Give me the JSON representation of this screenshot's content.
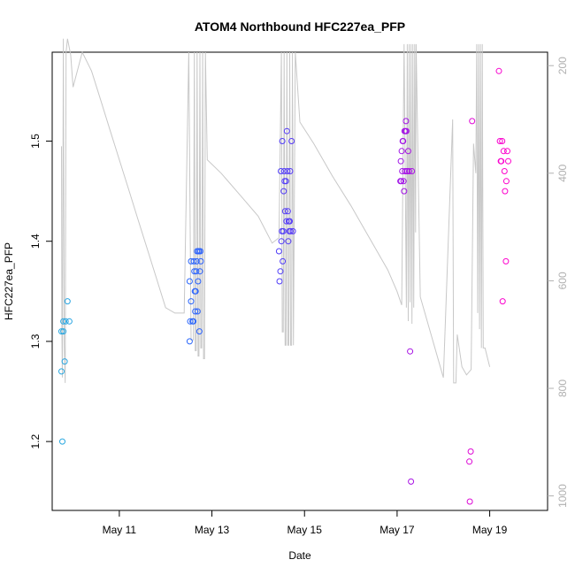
{
  "chart_data": {
    "type": "scatter",
    "title": "ATOM4 Northbound HFC227ea_PFP",
    "xlabel": "Date",
    "ylabel": "HFC227ea_PFP",
    "x_unit": "days since May 9 00:00",
    "xlim": [
      0.55,
      11.25
    ],
    "ylim": [
      1.1312,
      1.5888
    ],
    "x_ticks": [
      {
        "value": 2,
        "label": "May 11"
      },
      {
        "value": 4,
        "label": "May 13"
      },
      {
        "value": 6,
        "label": "May 15"
      },
      {
        "value": 8,
        "label": "May 17"
      },
      {
        "value": 10,
        "label": "May 19"
      }
    ],
    "y_ticks": [
      1.2,
      1.3,
      1.4,
      1.5
    ],
    "secondary_axis": {
      "side": "right",
      "color": "#b0b0b0",
      "ticks": [
        200,
        400,
        600,
        800,
        1000
      ],
      "lim_reversed": [
        1027,
        175
      ],
      "series": {
        "name": "altitude/pressure trace",
        "color": "#c8c8c8",
        "x": [
          0.75,
          0.76,
          0.77,
          0.79,
          0.81,
          0.83,
          0.85,
          0.88,
          0.95,
          1.0,
          1.2,
          1.4,
          1.6,
          1.8,
          2.0,
          2.2,
          2.4,
          2.6,
          2.8,
          3.0,
          3.2,
          3.4,
          3.5,
          3.55,
          3.6,
          3.62,
          3.64,
          3.66,
          3.68,
          3.7,
          3.72,
          3.74,
          3.76,
          3.78,
          3.8,
          3.82,
          3.84,
          3.86,
          3.9,
          4.2,
          4.6,
          5.0,
          5.3,
          5.45,
          5.5,
          5.52,
          5.54,
          5.56,
          5.58,
          5.6,
          5.62,
          5.64,
          5.66,
          5.68,
          5.7,
          5.72,
          5.74,
          5.76,
          5.8,
          5.9,
          6.2,
          6.6,
          7.0,
          7.4,
          7.8,
          8.0,
          8.1,
          8.15,
          8.2,
          8.22,
          8.24,
          8.26,
          8.28,
          8.3,
          8.32,
          8.34,
          8.36,
          8.38,
          8.4,
          8.41,
          8.5,
          9.0,
          9.2,
          9.22,
          9.27,
          9.3,
          9.4,
          9.5,
          9.6,
          9.65,
          9.7,
          9.72,
          9.74,
          9.76,
          9.78,
          9.8,
          9.82,
          9.84,
          9.86,
          9.9,
          10.0
        ],
        "y": [
          350,
          700,
          780,
          150,
          720,
          790,
          175,
          150,
          180,
          240,
          175,
          210,
          265,
          320,
          375,
          430,
          485,
          540,
          595,
          650,
          660,
          660,
          175,
          710,
          710,
          175,
          730,
          730,
          175,
          740,
          740,
          175,
          725,
          725,
          175,
          745,
          745,
          175,
          375,
          400,
          440,
          480,
          530,
          520,
          175,
          695,
          695,
          175,
          720,
          720,
          175,
          720,
          720,
          175,
          720,
          720,
          175,
          720,
          175,
          305,
          345,
          405,
          460,
          520,
          580,
          620,
          645,
          160,
          650,
          160,
          675,
          160,
          640,
          160,
          680,
          160,
          650,
          160,
          510,
          160,
          630,
          780,
          300,
          790,
          790,
          700,
          760,
          775,
          765,
          345,
          400,
          160,
          660,
          160,
          690,
          160,
          725,
          160,
          725,
          725,
          760
        ]
      }
    },
    "series": [
      {
        "name": "points",
        "color_gradient": [
          "#29a8e0",
          "#2b5cff",
          "#7a1cf0",
          "#ff00cc"
        ],
        "x": [
          0.75,
          0.75,
          0.77,
          0.79,
          0.79,
          0.82,
          0.84,
          0.88,
          0.92,
          3.52,
          3.52,
          3.53,
          3.55,
          3.55,
          3.58,
          3.6,
          3.61,
          3.62,
          3.63,
          3.64,
          3.65,
          3.66,
          3.67,
          3.68,
          3.69,
          3.7,
          3.71,
          3.72,
          3.73,
          3.74,
          3.75,
          3.76,
          5.45,
          5.46,
          5.48,
          5.49,
          5.5,
          5.51,
          5.52,
          5.53,
          5.54,
          5.55,
          5.56,
          5.57,
          5.58,
          5.6,
          5.61,
          5.62,
          5.63,
          5.64,
          5.65,
          5.66,
          5.67,
          5.68,
          5.69,
          5.7,
          5.72,
          5.75,
          8.07,
          8.08,
          8.09,
          8.1,
          8.11,
          8.12,
          8.13,
          8.14,
          8.15,
          8.16,
          8.17,
          8.18,
          8.19,
          8.2,
          8.21,
          8.22,
          8.24,
          8.26,
          8.28,
          8.3,
          8.32,
          9.56,
          9.57,
          9.59,
          9.62,
          10.2,
          10.22,
          10.24,
          10.25,
          10.27,
          10.28,
          10.3,
          10.32,
          10.33,
          10.35,
          10.36,
          10.38,
          10.4
        ],
        "y": [
          1.31,
          1.27,
          1.2,
          1.32,
          1.31,
          1.28,
          1.32,
          1.34,
          1.32,
          1.36,
          1.3,
          1.32,
          1.34,
          1.38,
          1.32,
          1.32,
          1.38,
          1.37,
          1.35,
          1.33,
          1.35,
          1.37,
          1.38,
          1.39,
          1.33,
          1.36,
          1.39,
          1.39,
          1.31,
          1.37,
          1.39,
          1.38,
          1.39,
          1.36,
          1.37,
          1.47,
          1.4,
          1.41,
          1.5,
          1.38,
          1.41,
          1.45,
          1.47,
          1.46,
          1.43,
          1.46,
          1.42,
          1.51,
          1.47,
          1.43,
          1.4,
          1.42,
          1.41,
          1.42,
          1.47,
          1.41,
          1.5,
          1.41,
          1.46,
          1.48,
          1.46,
          1.49,
          1.47,
          1.5,
          1.5,
          1.46,
          1.45,
          1.51,
          1.47,
          1.51,
          1.52,
          1.51,
          1.47,
          1.47,
          1.49,
          1.47,
          1.29,
          1.16,
          1.47,
          1.18,
          1.14,
          1.19,
          1.52,
          1.57,
          1.5,
          1.48,
          1.48,
          1.5,
          1.34,
          1.49,
          1.47,
          1.45,
          1.38,
          1.46,
          1.49,
          1.48
        ]
      }
    ]
  }
}
